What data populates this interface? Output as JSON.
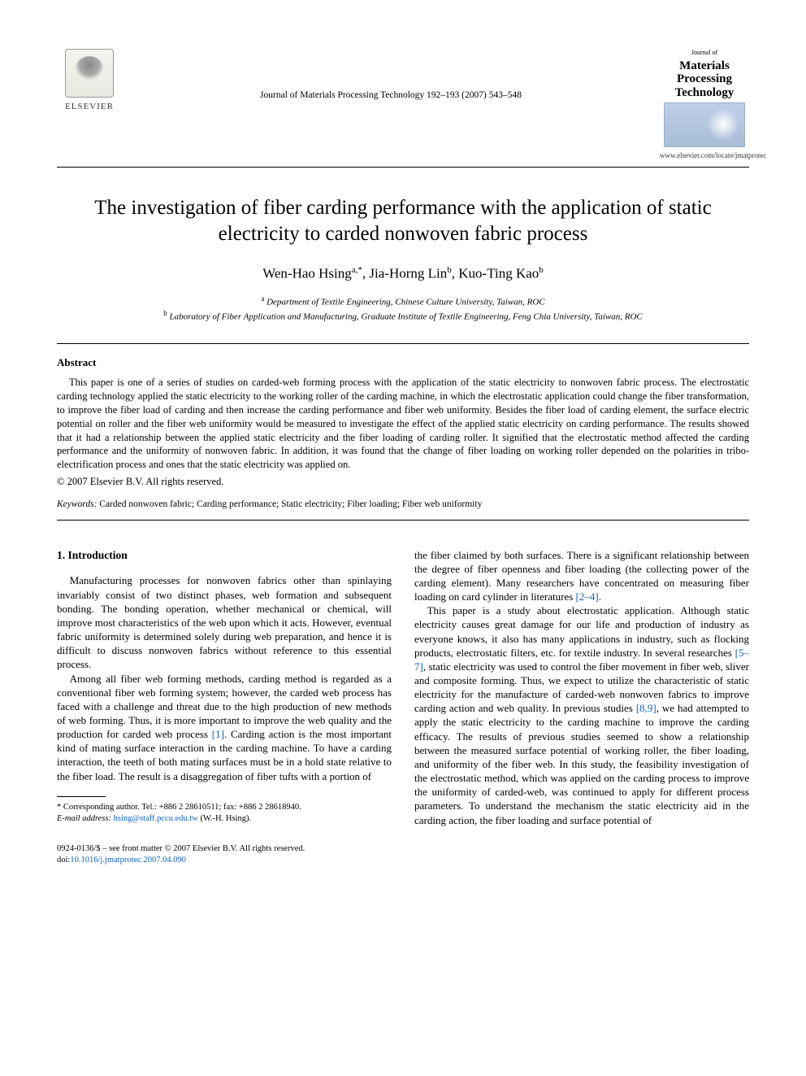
{
  "header": {
    "publisher_name": "ELSEVIER",
    "journal_ref": "Journal of Materials Processing Technology 192–193 (2007) 543–548",
    "journal_logo_small": "Journal of",
    "journal_logo_title": "Materials Processing Technology",
    "journal_url": "www.elsevier.com/locate/jmatprotec"
  },
  "title": "The investigation of fiber carding performance with the application of static electricity to carded nonwoven fabric process",
  "authors": {
    "a1_name": "Wen-Hao Hsing",
    "a1_sup": "a,*",
    "a2_name": "Jia-Horng Lin",
    "a2_sup": "b",
    "a3_name": "Kuo-Ting Kao",
    "a3_sup": "b"
  },
  "affiliations": {
    "a_sup": "a",
    "a_text": "Department of Textile Engineering, Chinese Culture University, Taiwan, ROC",
    "b_sup": "b",
    "b_text": "Laboratory of Fiber Application and Manufacturing, Graduate Institute of Textile Engineering, Feng Chia University, Taiwan, ROC"
  },
  "abstract": {
    "heading": "Abstract",
    "body": "This paper is one of a series of studies on carded-web forming process with the application of the static electricity to nonwoven fabric process. The electrostatic carding technology applied the static electricity to the working roller of the carding machine, in which the electrostatic application could change the fiber transformation, to improve the fiber load of carding and then increase the carding performance and fiber web uniformity. Besides the fiber load of carding element, the surface electric potential on roller and the fiber web uniformity would be measured to investigate the effect of the applied static electricity on carding performance. The results showed that it had a relationship between the applied static electricity and the fiber loading of carding roller. It signified that the electrostatic method affected the carding performance and the uniformity of nonwoven fabric. In addition, it was found that the change of fiber loading on working roller depended on the polarities in tribo-electrification process and ones that the static electricity was applied on.",
    "copyright": "© 2007 Elsevier B.V. All rights reserved."
  },
  "keywords": {
    "label": "Keywords:",
    "text": "Carded nonwoven fabric; Carding performance; Static electricity; Fiber loading; Fiber web uniformity"
  },
  "section1": {
    "heading": "1.  Introduction",
    "p1": "Manufacturing processes for nonwoven fabrics other than spinlaying invariably consist of two distinct phases, web formation and subsequent bonding. The bonding operation, whether mechanical or chemical, will improve most characteristics of the web upon which it acts. However, eventual fabric uniformity is determined solely during web preparation, and hence it is difficult to discuss nonwoven fabrics without reference to this essential process.",
    "p2a": "Among all fiber web forming methods, carding method is regarded as a conventional fiber web forming system; however, the carded web process has faced with a challenge and threat due to the high production of new methods of web forming. Thus, it is more important to improve the web quality and the production for carded web process ",
    "p2_ref": "[1]",
    "p2b": ". Carding action is the most important kind of mating surface interaction in the carding machine. To have a carding interaction, the teeth of both mating surfaces must be in a hold state relative to the fiber load. The result is a disaggregation of fiber tufts with a portion of",
    "p3a": "the fiber claimed by both surfaces. There is a significant relationship between the degree of fiber openness and fiber loading (the collecting power of the carding element). Many researchers have concentrated on measuring fiber loading on card cylinder in literatures ",
    "p3_ref": "[2–4]",
    "p3b": ".",
    "p4a": "This paper is a study about electrostatic application. Although static electricity causes great damage for our life and production of industry as everyone knows, it also has many applications in industry, such as flocking products, electrostatic filters, etc. for textile industry. In several researches ",
    "p4_ref1": "[5–7]",
    "p4b": ", static electricity was used to control the fiber movement in fiber web, sliver and composite forming. Thus, we expect to utilize the characteristic of static electricity for the manufacture of carded-web nonwoven fabrics to improve carding action and web quality. In previous studies ",
    "p4_ref2": "[8,9]",
    "p4c": ", we had attempted to apply the static electricity to the carding machine to improve the carding efficacy. The results of previous studies seemed to show a relationship between the measured surface potential of working roller, the fiber loading, and uniformity of the fiber web. In this study, the feasibility investigation of the electrostatic method, which was applied on the carding process to improve the uniformity of carded-web, was continued to apply for different process parameters. To understand the mechanism the static electricity aid in the carding action, the fiber loading and surface potential of"
  },
  "footnote": {
    "corr": "* Corresponding author. Tel.: +886 2 28610511; fax: +886 2 28618940.",
    "email_label": "E-mail address:",
    "email": "hsing@staff.pccu.edu.tw",
    "email_who": "(W.-H. Hsing)."
  },
  "footer": {
    "line1": "0924-0136/$ – see front matter © 2007 Elsevier B.V. All rights reserved.",
    "doi_label": "doi:",
    "doi": "10.1016/j.jmatprotec.2007.04.090"
  }
}
